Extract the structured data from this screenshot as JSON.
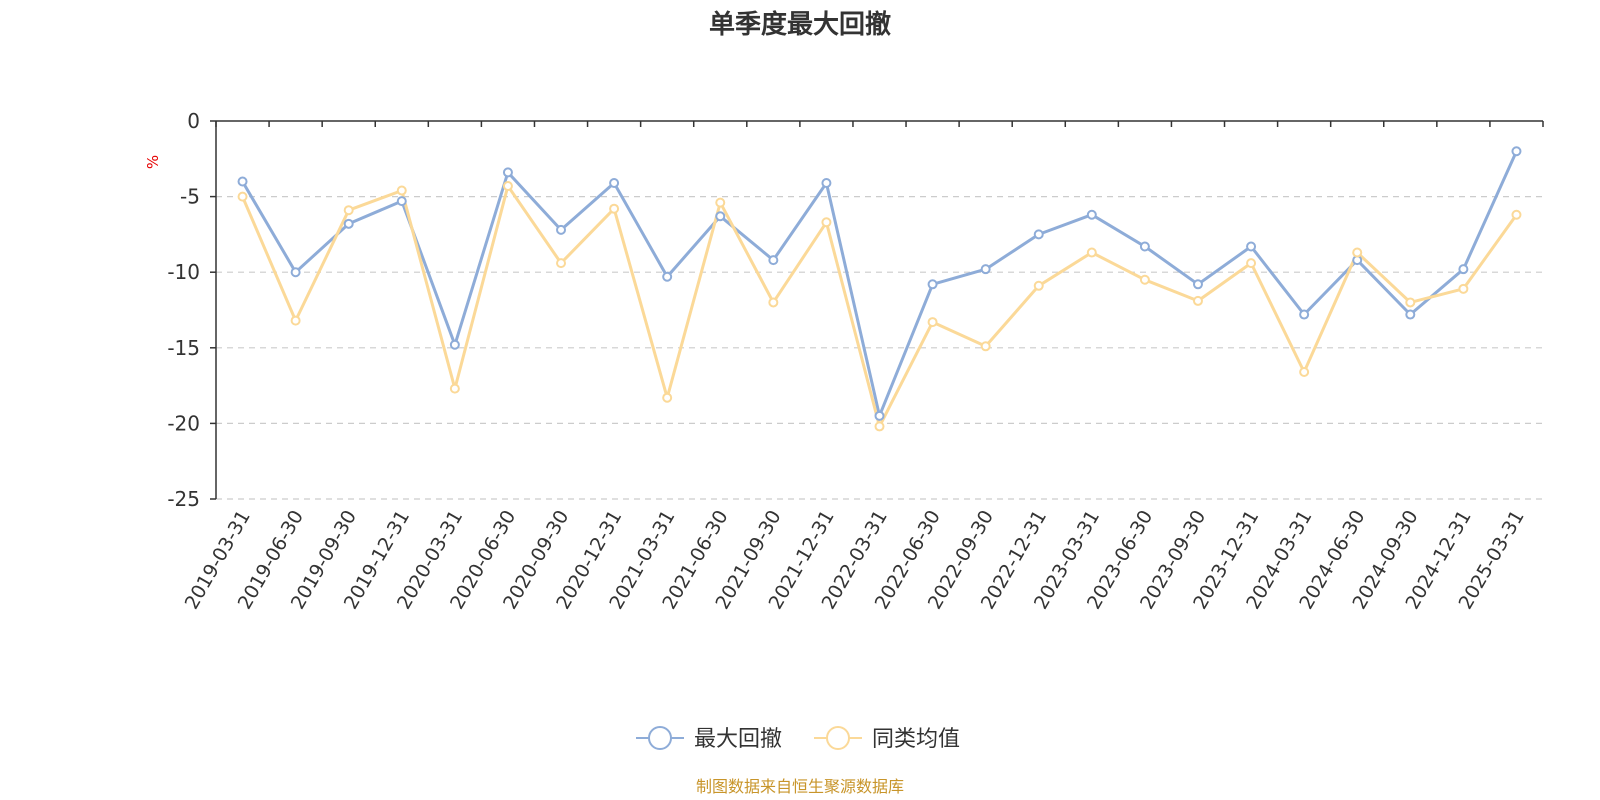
{
  "chart_data": {
    "type": "line",
    "title": "单季度最大回撤",
    "ylabel": "%",
    "ylim": [
      -25,
      0
    ],
    "yticks": [
      0,
      -5,
      -10,
      -15,
      -20,
      -25
    ],
    "grid": true,
    "legend_position": "bottom-center",
    "categories": [
      "2019-03-31",
      "2019-06-30",
      "2019-09-30",
      "2019-12-31",
      "2020-03-31",
      "2020-06-30",
      "2020-09-30",
      "2020-12-31",
      "2021-03-31",
      "2021-06-30",
      "2021-09-30",
      "2021-12-31",
      "2022-03-31",
      "2022-06-30",
      "2022-09-30",
      "2022-12-31",
      "2023-03-31",
      "2023-06-30",
      "2023-09-30",
      "2023-12-31",
      "2024-03-31",
      "2024-06-30",
      "2024-09-30",
      "2024-12-31",
      "2025-03-31"
    ],
    "series": [
      {
        "name": "最大回撤",
        "color": "#8eacd8",
        "values": [
          -4.0,
          -10.0,
          -6.8,
          -5.3,
          -14.8,
          -3.4,
          -7.2,
          -4.1,
          -10.3,
          -6.3,
          -9.2,
          -4.1,
          -19.5,
          -10.8,
          -9.8,
          -7.5,
          -6.2,
          -8.3,
          -10.8,
          -8.3,
          -12.8,
          -9.2,
          -12.8,
          -9.8,
          -2.0
        ]
      },
      {
        "name": "同类均值",
        "color": "#fbd998",
        "values": [
          -5.0,
          -13.2,
          -5.9,
          -4.6,
          -17.7,
          -4.3,
          -9.4,
          -5.8,
          -18.3,
          -5.4,
          -12.0,
          -6.7,
          -20.2,
          -13.3,
          -14.9,
          -10.9,
          -8.7,
          -10.5,
          -11.9,
          -9.4,
          -16.6,
          -8.7,
          -12.0,
          -11.1,
          -6.2
        ]
      }
    ],
    "source": "制图数据来自恒生聚源数据库"
  }
}
